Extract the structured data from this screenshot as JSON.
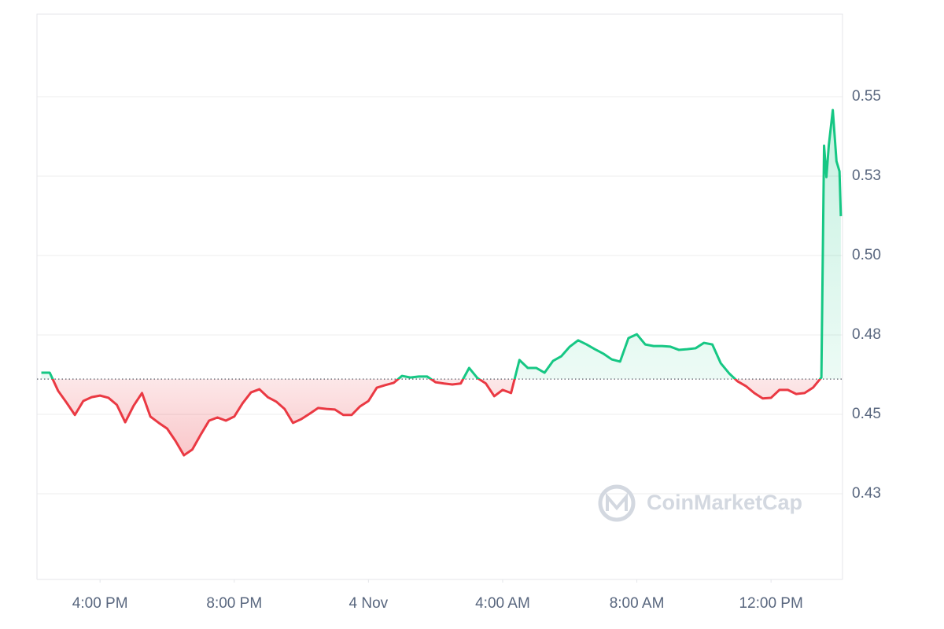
{
  "chart_data": {
    "type": "line",
    "watermark": "CoinMarketCap",
    "x": [
      14.25,
      14.5,
      14.75,
      15,
      15.25,
      15.5,
      15.75,
      16,
      16.25,
      16.5,
      16.75,
      17,
      17.25,
      17.5,
      17.75,
      18,
      18.25,
      18.5,
      18.75,
      19,
      19.25,
      19.5,
      19.75,
      20,
      20.25,
      20.5,
      20.75,
      21,
      21.25,
      21.5,
      21.75,
      22,
      22.25,
      22.5,
      22.75,
      23,
      23.25,
      23.5,
      23.75,
      24,
      24.25,
      24.5,
      24.75,
      25,
      25.25,
      25.5,
      25.75,
      26,
      26.25,
      26.5,
      26.75,
      27,
      27.25,
      27.5,
      27.75,
      28,
      28.25,
      28.5,
      28.75,
      29,
      29.25,
      29.5,
      29.75,
      30,
      30.25,
      30.5,
      30.75,
      31,
      31.25,
      31.5,
      31.75,
      32,
      32.25,
      32.5,
      32.75,
      33,
      33.25,
      33.5,
      33.75,
      34,
      34.25,
      34.5,
      34.75,
      35,
      35.25,
      35.5,
      35.75,
      36,
      36.25,
      36.5,
      36.75,
      37,
      37.25,
      37.5,
      37.58,
      37.65,
      37.72,
      37.84,
      37.95,
      38.04,
      38.08
    ],
    "values": [
      0.4631,
      0.4631,
      0.4574,
      0.4537,
      0.4498,
      0.4542,
      0.4554,
      0.4559,
      0.4552,
      0.453,
      0.4475,
      0.4527,
      0.4567,
      0.4493,
      0.4473,
      0.4455,
      0.4416,
      0.4371,
      0.4389,
      0.4436,
      0.448,
      0.449,
      0.448,
      0.4493,
      0.4535,
      0.4569,
      0.4579,
      0.4554,
      0.454,
      0.4517,
      0.4473,
      0.4485,
      0.4502,
      0.452,
      0.4517,
      0.4515,
      0.4498,
      0.4498,
      0.4525,
      0.4542,
      0.4584,
      0.4592,
      0.4599,
      0.4621,
      0.4616,
      0.4619,
      0.4619,
      0.4601,
      0.4597,
      0.4594,
      0.4597,
      0.4646,
      0.4614,
      0.4597,
      0.4557,
      0.4577,
      0.4567,
      0.4671,
      0.4646,
      0.4646,
      0.4631,
      0.4668,
      0.4683,
      0.4713,
      0.4733,
      0.472,
      0.4705,
      0.4691,
      0.4673,
      0.4666,
      0.474,
      0.4752,
      0.472,
      0.4715,
      0.4715,
      0.4713,
      0.4703,
      0.4705,
      0.4708,
      0.4725,
      0.472,
      0.4661,
      0.4629,
      0.4604,
      0.4589,
      0.4567,
      0.455,
      0.4552,
      0.4577,
      0.4577,
      0.4564,
      0.4567,
      0.4584,
      0.4616,
      0.5346,
      0.5247,
      0.5346,
      0.5458,
      0.5297,
      0.5265,
      0.5124
    ],
    "baseline": 0.4611,
    "up_color": "#16c784",
    "down_color": "#ea3943",
    "xlim": [
      14.12,
      38.13
    ],
    "ylim": [
      0.398,
      0.576
    ],
    "xticks": [
      {
        "value": 16,
        "label": "4:00 PM"
      },
      {
        "value": 20,
        "label": "8:00 PM"
      },
      {
        "value": 24,
        "label": "4 Nov"
      },
      {
        "value": 28,
        "label": "4:00 AM"
      },
      {
        "value": 32,
        "label": "8:00 AM"
      },
      {
        "value": 36,
        "label": "12:00 PM"
      }
    ],
    "yticks": [
      {
        "value": 0.425,
        "label": "0.43"
      },
      0.45,
      {
        "value": 0.475,
        "label": "0.48"
      },
      {
        "value": 0.5,
        "label": "0.50"
      },
      {
        "value": 0.525,
        "label": "0.53"
      },
      0.55
    ],
    "grid": true
  }
}
